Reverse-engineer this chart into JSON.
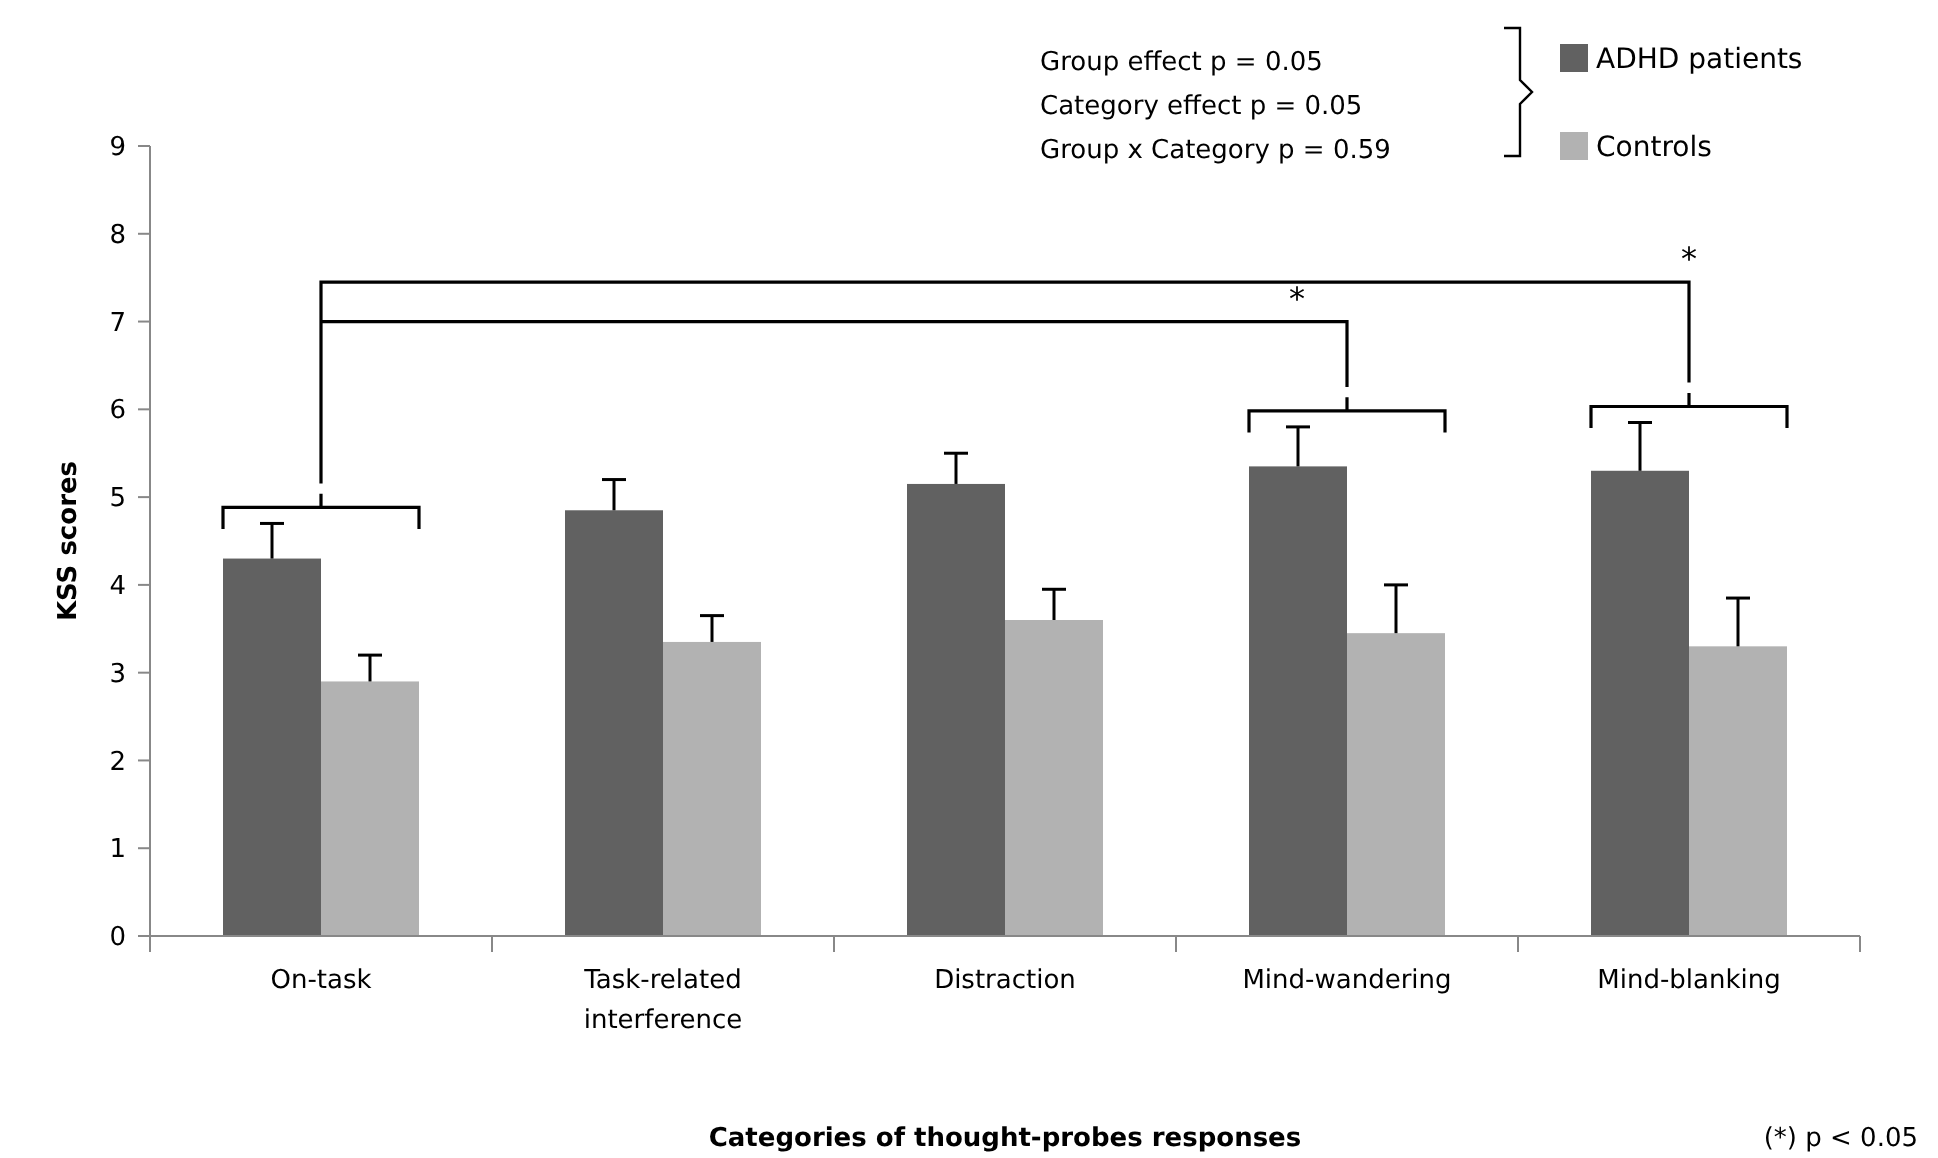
{
  "chart_data": {
    "type": "bar",
    "xlabel": "Categories of thought-probes responses",
    "ylabel": "KSS scores",
    "categories": [
      "On-task",
      "Task-related interference",
      "Distraction",
      "Mind-wandering",
      "Mind-blanking"
    ],
    "series": [
      {
        "name": "ADHD patients",
        "color": "#616161",
        "values": [
          4.3,
          4.85,
          5.15,
          5.35,
          5.3
        ],
        "errors": [
          0.4,
          0.35,
          0.35,
          0.45,
          0.55
        ]
      },
      {
        "name": "Controls",
        "color": "#b2b2b2",
        "values": [
          2.9,
          3.35,
          3.6,
          3.45,
          3.3
        ],
        "errors": [
          0.3,
          0.3,
          0.35,
          0.55,
          0.55
        ]
      }
    ],
    "ylim": [
      0,
      9
    ],
    "yticks": [
      0,
      1,
      2,
      3,
      4,
      5,
      6,
      7,
      8,
      9
    ],
    "grid": false,
    "legend": "top right",
    "annotations": [
      "Group effect p  = 0.05",
      "Category effect p = 0.05",
      "Group x Category  p = 0.59",
      "*",
      "*",
      "(*) p < 0.05"
    ]
  }
}
